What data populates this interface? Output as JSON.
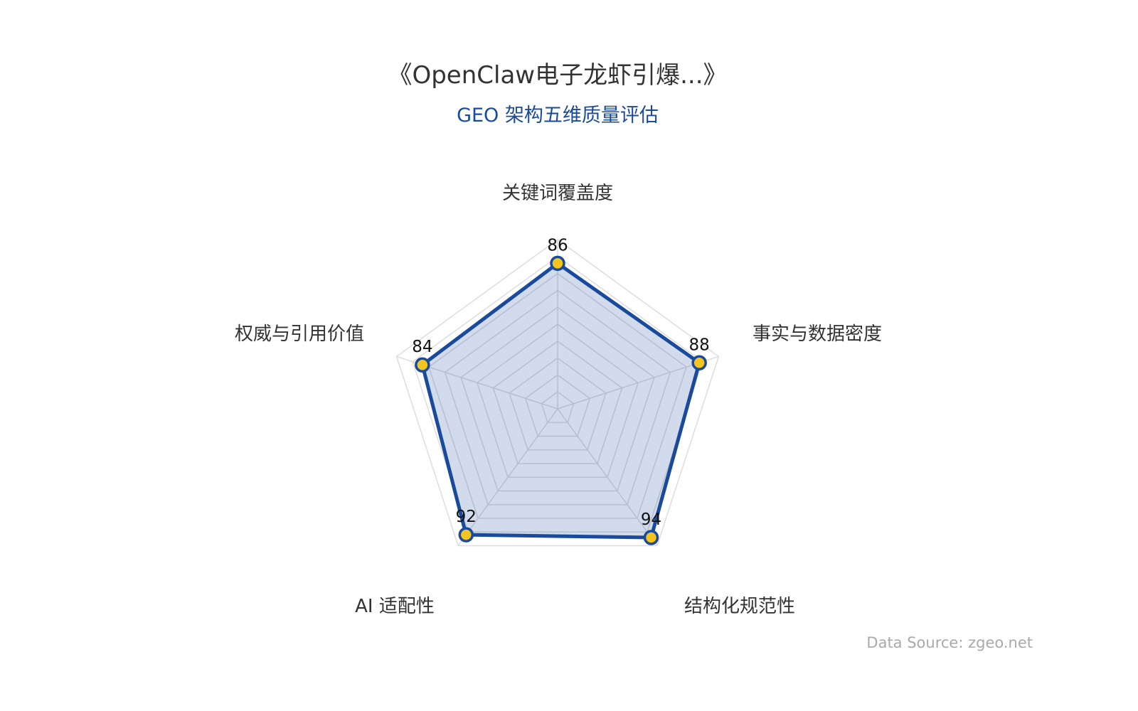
{
  "chart_data": {
    "type": "radar",
    "title": "《OpenClaw电子龙虾引爆...》",
    "subtitle": "GEO 架构五维质量评估",
    "indicators": [
      "关键词覆盖度",
      "事实与数据密度",
      "结构化规范性",
      "AI 适配性",
      "权威与引用价值"
    ],
    "values": [
      86,
      88,
      94,
      92,
      84
    ],
    "range": [
      0,
      100
    ],
    "split_number": 10,
    "colors": {
      "line": "#1a4a9c",
      "area": "#1a4a9c",
      "point": "#f4c51f",
      "grid": "#dddddd"
    },
    "show_data_labels": true,
    "source": "Data Source: zgeo.net"
  }
}
